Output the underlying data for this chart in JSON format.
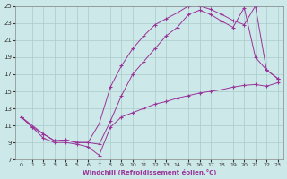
{
  "xlabel": "Windchill (Refroidissement éolien,°C)",
  "bg_color": "#cce8e8",
  "grid_color": "#aacccc",
  "line_color": "#993399",
  "xlim": [
    -0.5,
    23.5
  ],
  "ylim": [
    7,
    25
  ],
  "xticks": [
    0,
    1,
    2,
    3,
    4,
    5,
    6,
    7,
    8,
    9,
    10,
    11,
    12,
    13,
    14,
    15,
    16,
    17,
    18,
    19,
    20,
    21,
    22,
    23
  ],
  "yticks": [
    7,
    9,
    11,
    13,
    15,
    17,
    19,
    21,
    23,
    25
  ],
  "line1_x": [
    0,
    1,
    2,
    3,
    4,
    5,
    6,
    7,
    8,
    9,
    10,
    11,
    12,
    13,
    14,
    15,
    16,
    17,
    18,
    19,
    20,
    21,
    22,
    23
  ],
  "line1_y": [
    12,
    10.8,
    9.5,
    9.0,
    9.0,
    8.8,
    8.5,
    7.5,
    10.8,
    12.0,
    12.5,
    13.0,
    13.5,
    13.8,
    14.2,
    14.5,
    14.8,
    15.0,
    15.2,
    15.5,
    15.7,
    15.8,
    15.6,
    16.0
  ],
  "line2_x": [
    0,
    1,
    2,
    3,
    4,
    5,
    6,
    7,
    8,
    9,
    10,
    11,
    12,
    13,
    14,
    15,
    16,
    17,
    18,
    19,
    20,
    21,
    22,
    23
  ],
  "line2_y": [
    12,
    10.8,
    10.0,
    9.2,
    9.3,
    9.0,
    9.0,
    8.8,
    11.5,
    14.5,
    17.0,
    18.5,
    20.0,
    21.5,
    22.5,
    24.0,
    24.5,
    24.0,
    23.2,
    22.5,
    24.8,
    19.0,
    17.5,
    16.5
  ],
  "line3_x": [
    0,
    2,
    3,
    4,
    5,
    6,
    7,
    8,
    9,
    10,
    11,
    12,
    13,
    14,
    15,
    16,
    17,
    18,
    19,
    20,
    21,
    22,
    23
  ],
  "line3_y": [
    12,
    10.0,
    9.2,
    9.3,
    9.0,
    9.0,
    11.2,
    15.5,
    18.0,
    20.0,
    21.5,
    22.8,
    23.5,
    24.2,
    25.0,
    25.0,
    24.6,
    24.0,
    23.3,
    22.8,
    25.0,
    17.5,
    16.5
  ]
}
